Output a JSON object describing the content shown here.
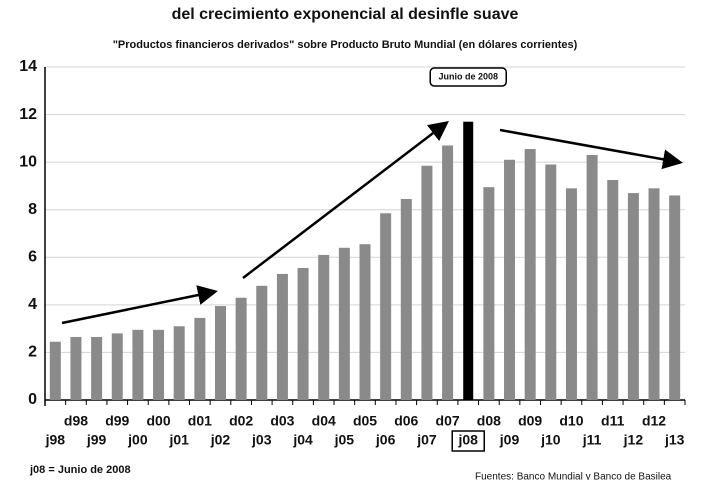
{
  "chart_data": {
    "type": "bar",
    "title": "del crecimiento exponencial al desinfle suave",
    "subtitle": "\"Productos financieros derivados\" sobre Producto Bruto Mundial (en dólares corrientes)",
    "annotation": "Junio de 2008",
    "footnote": "j08 = Junio de 2008",
    "source": "Fuentes: Banco Mundial y Banco de Basilea",
    "categories": [
      "j98",
      "d98",
      "j99",
      "d99",
      "j00",
      "d00",
      "j01",
      "d01",
      "j02",
      "d02",
      "j03",
      "d03",
      "j04",
      "d04",
      "j05",
      "d05",
      "j06",
      "d06",
      "j07",
      "d07",
      "j08",
      "d08",
      "j09",
      "d09",
      "j10",
      "d10",
      "j11",
      "d11",
      "j12",
      "d12",
      "j13"
    ],
    "values": [
      2.45,
      2.65,
      2.65,
      2.8,
      2.95,
      2.95,
      3.1,
      3.45,
      3.95,
      4.3,
      4.8,
      5.3,
      5.55,
      6.1,
      6.4,
      6.55,
      7.85,
      8.45,
      9.85,
      10.7,
      11.7,
      8.95,
      10.1,
      10.55,
      9.9,
      8.9,
      10.3,
      9.25,
      8.7,
      8.9,
      8.6
    ],
    "colors": [
      "#8a8a8a",
      "#8a8a8a",
      "#8a8a8a",
      "#8a8a8a",
      "#8a8a8a",
      "#8a8a8a",
      "#8a8a8a",
      "#8a8a8a",
      "#8a8a8a",
      "#8a8a8a",
      "#8a8a8a",
      "#8a8a8a",
      "#8a8a8a",
      "#8a8a8a",
      "#8a8a8a",
      "#8a8a8a",
      "#8a8a8a",
      "#8a8a8a",
      "#8a8a8a",
      "#8a8a8a",
      "#000000",
      "#8a8a8a",
      "#8a8a8a",
      "#8a8a8a",
      "#8a8a8a",
      "#8a8a8a",
      "#8a8a8a",
      "#8a8a8a",
      "#8a8a8a",
      "#8a8a8a",
      "#8a8a8a"
    ],
    "ylim": [
      0,
      14
    ],
    "yticks": [
      0,
      2,
      4,
      6,
      8,
      10,
      12,
      14
    ],
    "grid": true
  }
}
